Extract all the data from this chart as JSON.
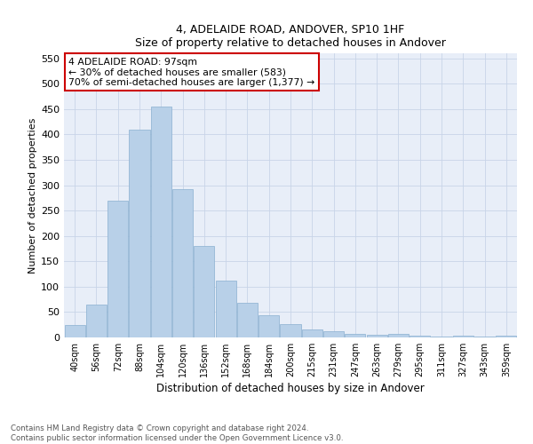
{
  "title1": "4, ADELAIDE ROAD, ANDOVER, SP10 1HF",
  "title2": "Size of property relative to detached houses in Andover",
  "xlabel": "Distribution of detached houses by size in Andover",
  "ylabel": "Number of detached properties",
  "categories": [
    "40sqm",
    "56sqm",
    "72sqm",
    "88sqm",
    "104sqm",
    "120sqm",
    "136sqm",
    "152sqm",
    "168sqm",
    "184sqm",
    "200sqm",
    "215sqm",
    "231sqm",
    "247sqm",
    "263sqm",
    "279sqm",
    "295sqm",
    "311sqm",
    "327sqm",
    "343sqm",
    "359sqm"
  ],
  "values": [
    25,
    65,
    270,
    410,
    455,
    293,
    180,
    112,
    68,
    44,
    26,
    16,
    13,
    7,
    6,
    7,
    3,
    2,
    4,
    2,
    4
  ],
  "bar_color": "#b8d0e8",
  "bar_edge_color": "#8ab0d0",
  "annotation_text": "4 ADELAIDE ROAD: 97sqm\n← 30% of detached houses are smaller (583)\n70% of semi-detached houses are larger (1,377) →",
  "annotation_box_color": "#ffffff",
  "annotation_box_edge_color": "#cc0000",
  "ylim": [
    0,
    560
  ],
  "yticks": [
    0,
    50,
    100,
    150,
    200,
    250,
    300,
    350,
    400,
    450,
    500,
    550
  ],
  "grid_color": "#c8d4e8",
  "bg_color": "#e8eef8",
  "footer": "Contains HM Land Registry data © Crown copyright and database right 2024.\nContains public sector information licensed under the Open Government Licence v3.0."
}
